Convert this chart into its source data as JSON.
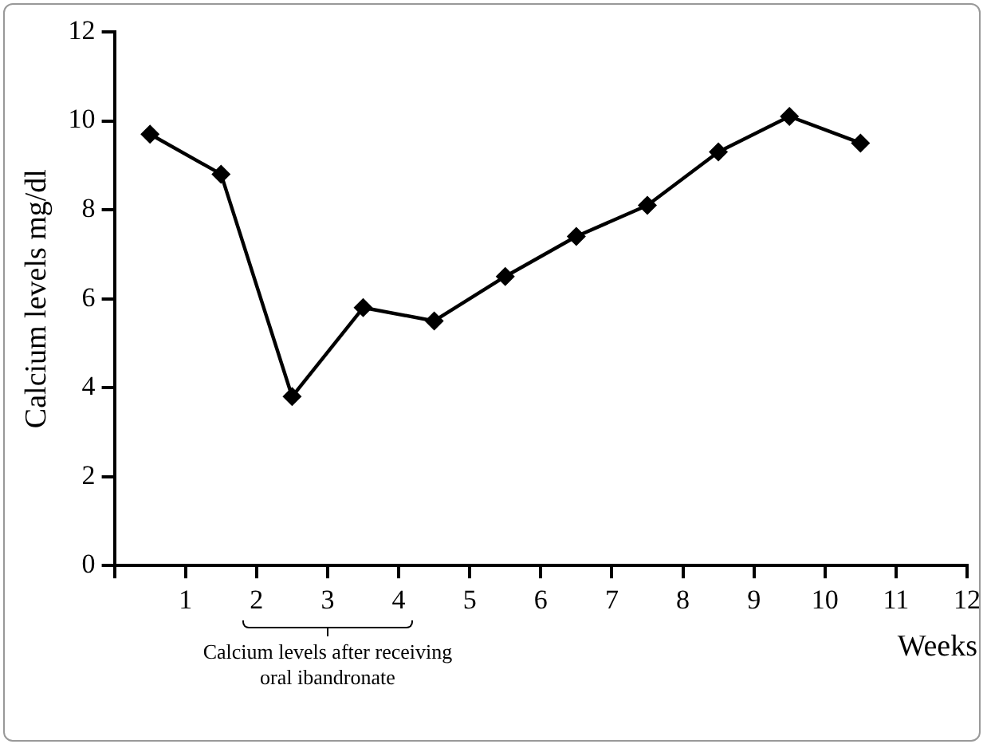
{
  "chart_data": {
    "type": "line",
    "xlabel": "Weeks",
    "ylabel": "Calcium levels mg/dl",
    "annotations": [
      "Calcium levels after receiving oral ibandronate"
    ],
    "x": [
      0.5,
      1.5,
      2.5,
      3.5,
      4.5,
      5.5,
      6.5,
      7.5,
      8.5,
      9.5,
      10.5
    ],
    "series": [
      {
        "color": "#000000",
        "values": [
          9.7,
          8.8,
          3.8,
          5.8,
          5.5,
          6.5,
          7.4,
          8.1,
          9.3,
          10.1,
          9.5
        ]
      }
    ],
    "xlim": [
      0,
      12
    ],
    "xticks": [
      {
        "value": 0,
        "label": null
      },
      1,
      2,
      3,
      4,
      5,
      6,
      7,
      8,
      9,
      10,
      11,
      12
    ],
    "ylim": [
      0,
      12
    ],
    "yticks": [
      0,
      2,
      4,
      6,
      8,
      10,
      12
    ],
    "grid": false,
    "legend": false,
    "marker": "diamond",
    "line_style": "solid"
  }
}
